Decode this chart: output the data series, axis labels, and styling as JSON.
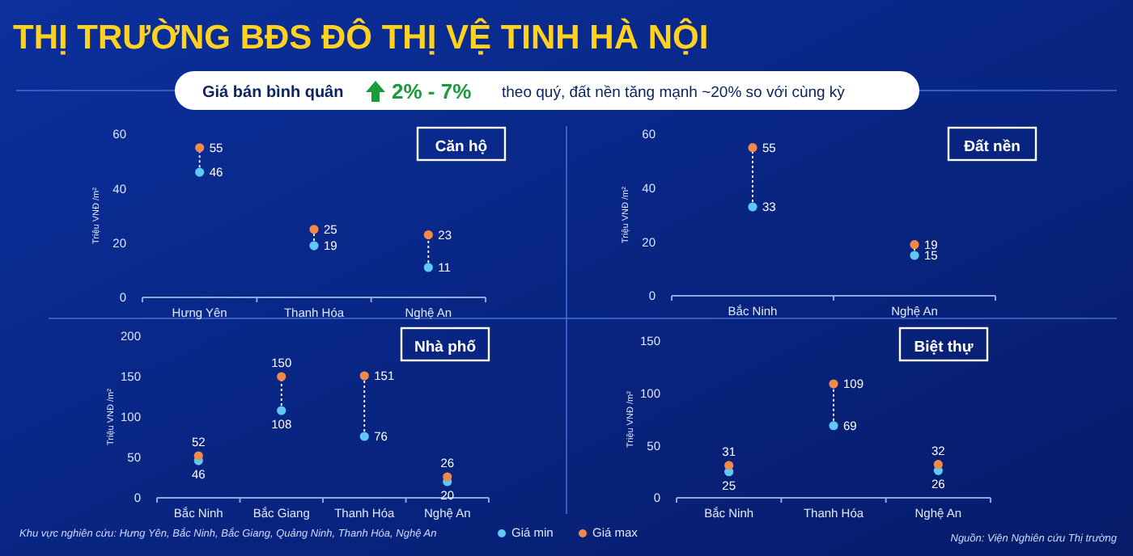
{
  "chart_data": [
    {
      "type": "scatter",
      "title": "Căn hộ",
      "annotations": [
        "THỊ TRƯỜNG BĐS ĐÔ THỊ VỆ TINH HÀ NỘI",
        "Giá bán bình quân",
        "2% - 7%",
        "theo quý, đất nền tăng mạnh ~20% so với cùng kỳ"
      ],
      "categories": [
        "Hưng Yên",
        "Thanh Hóa",
        "Nghệ An"
      ],
      "ylabel": "Triệu VNĐ /m²",
      "ylim": [
        0,
        60
      ],
      "yticks": [
        0,
        20,
        40,
        60
      ],
      "marker": "circle",
      "data_labels": true,
      "series": [
        {
          "color": "#5fc8f5",
          "values": [
            46,
            19,
            11
          ]
        },
        {
          "color": "#f0894a",
          "values": [
            55,
            25,
            23
          ]
        }
      ]
    },
    {
      "type": "scatter",
      "title": "Đất nền",
      "categories": [
        "Bắc Ninh",
        "Nghệ An"
      ],
      "ylabel": "Triệu VNĐ /m²",
      "ylim": [
        0,
        60
      ],
      "yticks": [
        0,
        20,
        40,
        60
      ],
      "marker": "circle",
      "data_labels": true,
      "series": [
        {
          "color": "#5fc8f5",
          "values": [
            33,
            15
          ]
        },
        {
          "color": "#f0894a",
          "values": [
            55,
            19
          ]
        }
      ]
    },
    {
      "type": "scatter",
      "title": "Nhà phố",
      "annotations": [
        "Khu vực nghiên cứu: Hưng Yên, Bắc Ninh, Bắc Giang, Quảng Ninh, Thanh Hóa, Nghệ An"
      ],
      "categories": [
        "Bắc Ninh",
        "Bắc Giang",
        "Thanh Hóa",
        "Nghệ An"
      ],
      "ylabel": "Triệu VNĐ /m²",
      "ylim": [
        0,
        200
      ],
      "yticks": [
        0,
        50,
        100,
        150,
        200
      ],
      "marker": "circle",
      "data_labels": true,
      "legend": "bottom right",
      "series": [
        {
          "name": "Giá min",
          "color": "#5fc8f5",
          "values": [
            46,
            108,
            76,
            20
          ]
        },
        {
          "color": "#f0894a",
          "values": [
            52,
            150,
            151,
            26
          ]
        }
      ]
    },
    {
      "type": "scatter",
      "title": "Biệt thự",
      "annotations": [
        "Nguồn: Viện Nghiên cứu Thị trường"
      ],
      "categories": [
        "Bắc Ninh",
        "Thanh Hóa",
        "Nghệ An"
      ],
      "ylabel": "Triệu VNĐ /m²",
      "ylim": [
        0,
        150
      ],
      "yticks": [
        0,
        50,
        100,
        150
      ],
      "marker": "circle",
      "data_labels": true,
      "legend": "bottom left",
      "series": [
        {
          "color": "#5fc8f5",
          "values": [
            25,
            69,
            26
          ]
        },
        {
          "name": "Giá max",
          "color": "#f0894a",
          "values": [
            31,
            109,
            32
          ]
        }
      ]
    }
  ]
}
